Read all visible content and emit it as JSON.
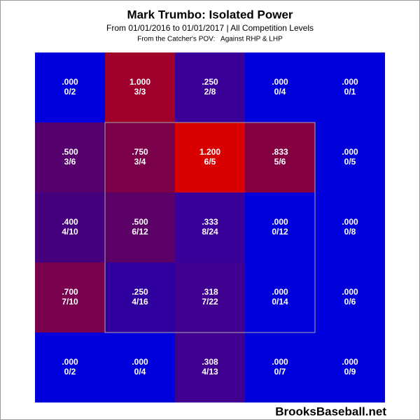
{
  "chart_data": {
    "type": "heatmap",
    "title": "Mark Trumbo: Isolated Power",
    "subtitle": "From 01/01/2016 to 01/01/2017 | All Competition Levels",
    "note": "From the Catcher's POV:   Against RHP & LHP",
    "watermark": "BrooksBaseball.net",
    "values": [
      [
        0,
        1.0,
        0.25,
        0,
        0
      ],
      [
        0.5,
        0.75,
        1.2,
        0.833,
        0
      ],
      [
        0.4,
        0.5,
        0.333,
        0,
        0
      ],
      [
        0.7,
        0.25,
        0.318,
        0,
        0
      ],
      [
        0,
        0,
        0.308,
        0,
        0
      ]
    ],
    "value_labels": [
      [
        ".000",
        "1.000",
        ".250",
        ".000",
        ".000"
      ],
      [
        ".500",
        ".750",
        "1.200",
        ".833",
        ".000"
      ],
      [
        ".400",
        ".500",
        ".333",
        ".000",
        ".000"
      ],
      [
        ".700",
        ".250",
        ".318",
        ".000",
        ".000"
      ],
      [
        ".000",
        ".000",
        ".308",
        ".000",
        ".000"
      ]
    ],
    "counts": [
      [
        "0/2",
        "3/3",
        "2/8",
        "0/4",
        "0/1"
      ],
      [
        "3/6",
        "3/4",
        "6/5",
        "5/6",
        "0/5"
      ],
      [
        "4/10",
        "6/12",
        "8/24",
        "0/12",
        "0/8"
      ],
      [
        "7/10",
        "4/16",
        "7/22",
        "0/14",
        "0/6"
      ],
      [
        "0/2",
        "0/4",
        "4/13",
        "0/7",
        "0/9"
      ]
    ],
    "colors": [
      [
        "#0000dc",
        "#a0002c",
        "#3a0098",
        "#0000dc",
        "#0000dc"
      ],
      [
        "#55006c",
        "#7a004a",
        "#d80000",
        "#850040",
        "#0000dc"
      ],
      [
        "#45007e",
        "#5a0066",
        "#3a009a",
        "#0000dc",
        "#0000dc"
      ],
      [
        "#78004c",
        "#30009e",
        "#400090",
        "#0000dc",
        "#0000dc"
      ],
      [
        "#0000dc",
        "#0000dc",
        "#400090",
        "#0000dc",
        "#0000dc"
      ]
    ]
  }
}
